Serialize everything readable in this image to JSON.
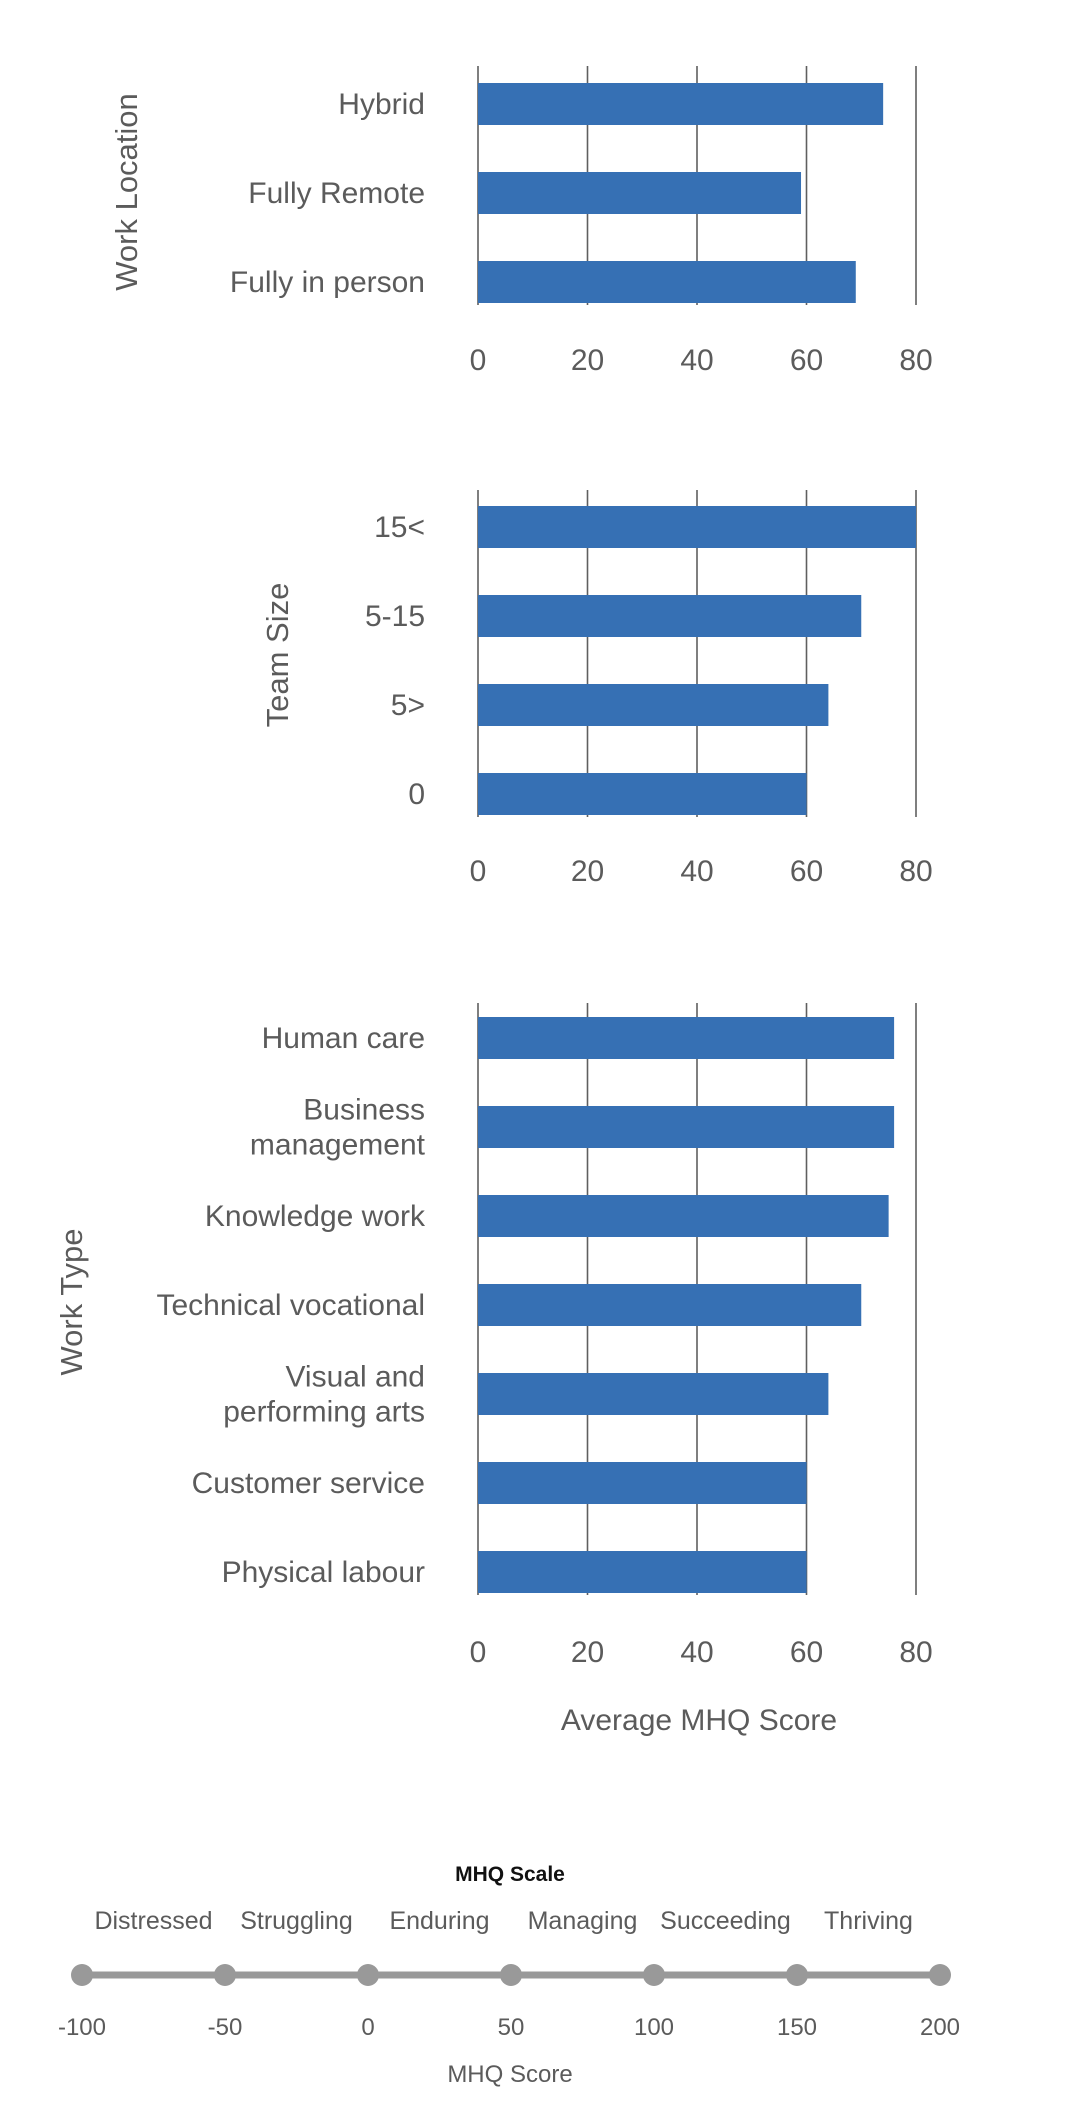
{
  "colors": {
    "bar": "#3670b4",
    "text": "#5b5b5b",
    "grid": "#5f5f5f",
    "scale_line": "#999999",
    "scale_title": "#111111"
  },
  "chart_data": [
    {
      "type": "bar",
      "orientation": "horizontal",
      "ylabel": "Work Location",
      "xlabel": "",
      "categories": [
        "Hybrid",
        "Fully Remote",
        "Fully in person"
      ],
      "values": [
        74,
        59,
        69
      ],
      "xlim": [
        0,
        80
      ],
      "xticks": [
        "0",
        "20",
        "40",
        "60",
        "80"
      ],
      "grid": true
    },
    {
      "type": "bar",
      "orientation": "horizontal",
      "ylabel": "Team Size",
      "xlabel": "",
      "categories": [
        "15<",
        "5-15",
        "5>",
        "0"
      ],
      "values": [
        80,
        70,
        64,
        60
      ],
      "xlim": [
        0,
        80
      ],
      "xticks": [
        "0",
        "20",
        "40",
        "60",
        "80"
      ],
      "grid": true
    },
    {
      "type": "bar",
      "orientation": "horizontal",
      "ylabel": "Work Type",
      "xlabel": "Average MHQ Score",
      "categories": [
        [
          "Human care"
        ],
        [
          "Business",
          "management"
        ],
        [
          "Knowledge work"
        ],
        [
          "Technical vocational"
        ],
        [
          "Visual and",
          "performing arts"
        ],
        [
          "Customer service"
        ],
        [
          "Physical labour"
        ]
      ],
      "values": [
        76,
        76,
        75,
        70,
        64,
        60,
        60
      ],
      "xlim": [
        0,
        80
      ],
      "xticks": [
        "0",
        "20",
        "40",
        "60",
        "80"
      ],
      "grid": true
    }
  ],
  "scale": {
    "title": "MHQ Scale",
    "levels": [
      "Distressed",
      "Struggling",
      "Enduring",
      "Managing",
      "Succeeding",
      "Thriving"
    ],
    "ticks": [
      -100,
      -50,
      0,
      50,
      100,
      150,
      200
    ],
    "tick_labels": [
      "-100",
      "-50",
      "0",
      "50",
      "100",
      "150",
      "200"
    ],
    "xlabel": "MHQ Score"
  }
}
